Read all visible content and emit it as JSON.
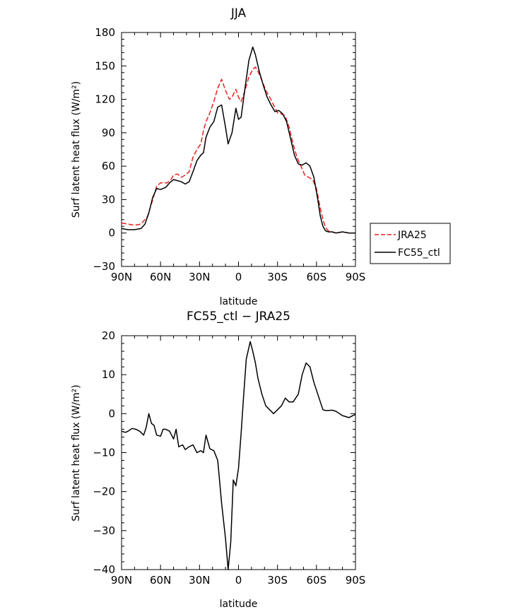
{
  "chart_data": [
    {
      "type": "line",
      "title": "JJA",
      "xlabel": "latitude",
      "ylabel": "Surf latent heat flux (W/m²)",
      "xlim": [
        -90,
        90
      ],
      "ylim": [
        -30,
        180
      ],
      "x_ticks": [
        -90,
        -60,
        -30,
        0,
        30,
        60,
        90
      ],
      "x_tick_labels": [
        "90N",
        "60N",
        "30N",
        "0",
        "30S",
        "60S",
        "90S"
      ],
      "y_ticks": [
        -30,
        0,
        30,
        60,
        90,
        120,
        150,
        180
      ],
      "y_tick_labels": [
        "−30",
        "0",
        "30",
        "60",
        "90",
        "120",
        "150",
        "180"
      ],
      "legend": [
        "JRA25",
        "FC55_ctl"
      ],
      "series": [
        {
          "name": "JRA25",
          "color": "#e8221d",
          "dash": true,
          "x": [
            -90,
            -85,
            -80,
            -75,
            -70,
            -66,
            -63,
            -60,
            -55,
            -52,
            -50,
            -47,
            -44,
            -41,
            -38,
            -35,
            -32,
            -29,
            -27,
            -25,
            -22,
            -19,
            -16,
            -13,
            -10,
            -7,
            -5,
            -2,
            0,
            2,
            5,
            8,
            11,
            13,
            15,
            18,
            21,
            24,
            27,
            30,
            33,
            36,
            39,
            42,
            45,
            48,
            51,
            54,
            57,
            60,
            63,
            65,
            67,
            69,
            72,
            75,
            80,
            85,
            90
          ],
          "values": [
            9,
            8,
            7,
            8,
            15,
            30,
            42,
            45,
            45,
            48,
            52,
            53,
            50,
            52,
            55,
            68,
            75,
            80,
            92,
            100,
            108,
            118,
            130,
            138,
            128,
            120,
            122,
            129,
            122,
            118,
            128,
            140,
            147,
            149,
            145,
            137,
            128,
            122,
            115,
            108,
            107,
            105,
            95,
            80,
            68,
            60,
            52,
            50,
            48,
            40,
            22,
            12,
            5,
            2,
            1,
            0,
            1,
            0,
            0
          ]
        },
        {
          "name": "FC55_ctl",
          "color": "#000000",
          "dash": false,
          "x": [
            -90,
            -85,
            -80,
            -75,
            -72,
            -69,
            -66,
            -63,
            -60,
            -56,
            -53,
            -50,
            -47,
            -44,
            -41,
            -38,
            -35,
            -32,
            -29,
            -27,
            -25,
            -22,
            -19,
            -16,
            -13,
            -10,
            -8,
            -5,
            -2,
            0,
            2,
            5,
            8,
            11,
            13,
            16,
            19,
            22,
            25,
            28,
            31,
            34,
            37,
            40,
            43,
            46,
            49,
            52,
            55,
            58,
            61,
            63,
            65,
            67,
            69,
            72,
            75,
            80,
            85,
            90
          ],
          "values": [
            4,
            3,
            3,
            4,
            8,
            18,
            32,
            40,
            39,
            41,
            45,
            48,
            47,
            46,
            44,
            46,
            55,
            65,
            70,
            72,
            86,
            95,
            100,
            113,
            115,
            95,
            80,
            90,
            112,
            102,
            104,
            130,
            155,
            167,
            160,
            145,
            133,
            122,
            115,
            109,
            110,
            107,
            100,
            85,
            70,
            62,
            61,
            63,
            60,
            50,
            30,
            15,
            6,
            2,
            1,
            1,
            0,
            1,
            0,
            0
          ]
        }
      ]
    },
    {
      "type": "line",
      "title": "FC55_ctl − JRA25",
      "xlabel": "latitude",
      "ylabel": "Surf latent heat flux (W/m²)",
      "xlim": [
        -90,
        90
      ],
      "ylim": [
        -40,
        20
      ],
      "x_ticks": [
        -90,
        -60,
        -30,
        0,
        30,
        60,
        90
      ],
      "x_tick_labels": [
        "90N",
        "60N",
        "30N",
        "0",
        "30S",
        "60S",
        "90S"
      ],
      "y_ticks": [
        -40,
        -30,
        -20,
        -10,
        0,
        10,
        20
      ],
      "y_tick_labels": [
        "−40",
        "−30",
        "−20",
        "−10",
        "0",
        "10",
        "20"
      ],
      "series": [
        {
          "name": "FC55_ctl − JRA25",
          "color": "#000000",
          "dash": false,
          "x": [
            -90,
            -87,
            -85,
            -82,
            -79,
            -76,
            -73,
            -71,
            -69,
            -67,
            -65,
            -63,
            -60,
            -58,
            -56,
            -53,
            -50,
            -48,
            -46,
            -43,
            -41,
            -38,
            -35,
            -32,
            -29,
            -27,
            -25,
            -22,
            -19,
            -16,
            -13,
            -10,
            -8,
            -6,
            -4,
            -2,
            0,
            2,
            4,
            6,
            9,
            11,
            13,
            15,
            18,
            21,
            24,
            27,
            30,
            33,
            36,
            39,
            42,
            44,
            46,
            49,
            52,
            55,
            58,
            61,
            63,
            65,
            67,
            69,
            72,
            75,
            80,
            85,
            88,
            90
          ],
          "values": [
            -4.5,
            -4.8,
            -4.5,
            -3.8,
            -4,
            -4.5,
            -5.5,
            -3.5,
            0,
            -2.5,
            -3,
            -5.5,
            -5.8,
            -4,
            -4,
            -4.5,
            -6.5,
            -4,
            -8.5,
            -8,
            -9.2,
            -8.5,
            -8,
            -10,
            -9.5,
            -10,
            -5.5,
            -9,
            -9.5,
            -12,
            -23,
            -32,
            -40,
            -33,
            -17,
            -18.5,
            -14,
            -5,
            5,
            14,
            18.5,
            16,
            13,
            9,
            5,
            2,
            1,
            0,
            1,
            2,
            4,
            3,
            3,
            4,
            5,
            10,
            13,
            12,
            8,
            5,
            3,
            1,
            0.8,
            0.8,
            0.9,
            0.6,
            -0.5,
            -1,
            -0.5,
            -0.2
          ]
        }
      ]
    }
  ]
}
